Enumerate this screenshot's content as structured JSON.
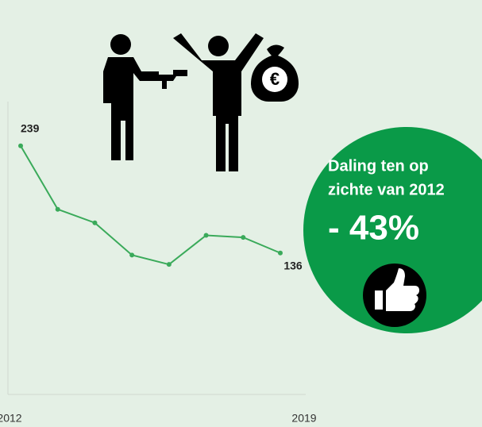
{
  "chart_data": {
    "type": "line",
    "categories": [
      "2012",
      null,
      null,
      null,
      null,
      null,
      null,
      "2019"
    ],
    "series": [
      {
        "color": "#3aaa5a",
        "values": [
          239,
          178,
          165,
          134,
          125,
          153,
          151,
          136
        ],
        "value_labels": [
          "239",
          null,
          null,
          null,
          null,
          null,
          null,
          "136"
        ]
      }
    ],
    "ylim": [
      0,
      280
    ]
  },
  "badge": {
    "lines": [
      "Daling ten op",
      "zichte van 2012"
    ],
    "value": "- 43%"
  },
  "money_bag_symbol": "€"
}
